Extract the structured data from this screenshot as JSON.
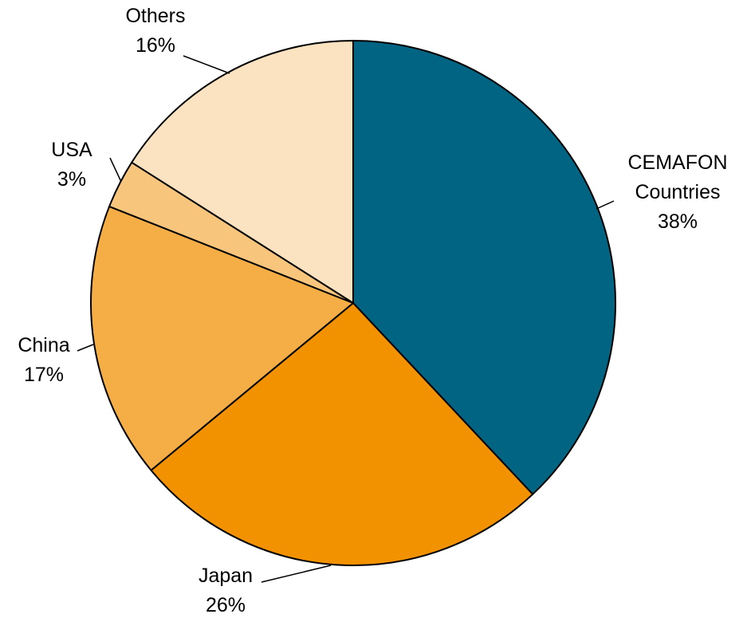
{
  "chart_data": {
    "type": "pie",
    "categories": [
      "CEMAFON Countries",
      "Japan",
      "China",
      "USA",
      "Others"
    ],
    "values": [
      38,
      26,
      17,
      3,
      16
    ],
    "value_labels": [
      "38%",
      "26%",
      "17%",
      "3%",
      "16%"
    ],
    "colors": [
      "#006482",
      "#f39200",
      "#f5ad45",
      "#f8c57c",
      "#fbe2c0"
    ]
  }
}
